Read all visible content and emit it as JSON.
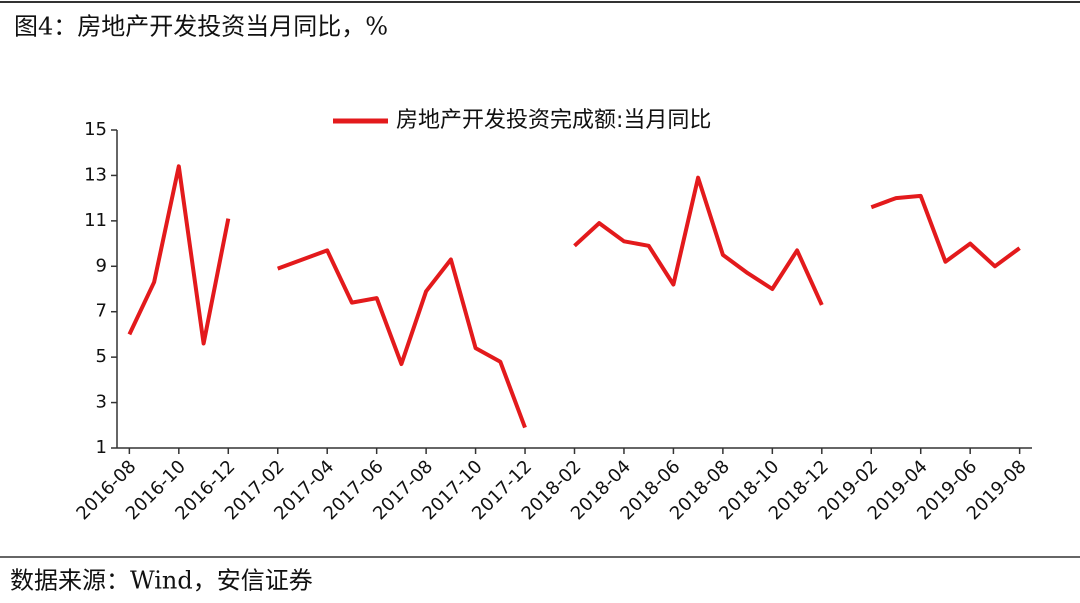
{
  "chart_data": {
    "type": "line",
    "title": "图4：房地产开发投资当月同比，%",
    "source": "数据来源：Wind，安信证券",
    "categories": [
      "2016-08",
      null,
      "2016-10",
      null,
      "2016-12",
      null,
      "2017-02",
      null,
      "2017-04",
      null,
      "2017-06",
      null,
      "2017-08",
      null,
      "2017-10",
      null,
      "2017-12",
      null,
      "2018-02",
      null,
      "2018-04",
      null,
      "2018-06",
      null,
      "2018-08",
      null,
      "2018-10",
      null,
      "2018-12",
      null,
      "2019-02",
      null,
      "2019-04",
      null,
      "2019-06",
      null,
      "2019-08"
    ],
    "series": [
      {
        "name": "房地产开发投资完成额:当月同比",
        "color": "#e31a1c",
        "values": [
          6.0,
          8.3,
          13.4,
          5.6,
          11.1,
          null,
          8.9,
          9.3,
          9.7,
          7.4,
          7.6,
          4.7,
          7.9,
          9.3,
          5.4,
          4.8,
          1.9,
          null,
          9.9,
          10.9,
          10.1,
          9.9,
          8.2,
          12.9,
          9.5,
          8.7,
          8.0,
          9.7,
          7.3,
          null,
          11.6,
          12.0,
          12.1,
          9.2,
          10.0,
          9.0,
          9.8
        ]
      }
    ],
    "ylim": [
      1,
      15
    ],
    "yticks": [
      1,
      3,
      5,
      7,
      9,
      11,
      13,
      15
    ],
    "legend": "top"
  }
}
